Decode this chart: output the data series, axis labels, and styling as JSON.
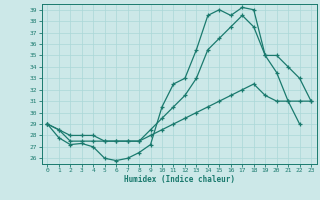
{
  "xlabel": "Humidex (Indice chaleur)",
  "bg_color": "#cce8e8",
  "line_color": "#1a7a6e",
  "grid_color": "#aad8d8",
  "ylim": [
    25.5,
    39.5
  ],
  "xlim": [
    -0.5,
    23.5
  ],
  "yticks": [
    26,
    27,
    28,
    29,
    30,
    31,
    32,
    33,
    34,
    35,
    36,
    37,
    38,
    39
  ],
  "xticks": [
    0,
    1,
    2,
    3,
    4,
    5,
    6,
    7,
    8,
    9,
    10,
    11,
    12,
    13,
    14,
    15,
    16,
    17,
    18,
    19,
    20,
    21,
    22,
    23
  ],
  "line1_x": [
    0,
    1,
    2,
    3,
    4,
    5,
    6,
    7,
    8,
    9,
    10,
    11,
    12,
    13,
    14,
    15,
    16,
    17,
    18,
    19,
    20,
    21,
    22
  ],
  "line1_y": [
    29,
    27.8,
    27.2,
    27.3,
    27.0,
    26.0,
    25.8,
    26.0,
    26.5,
    27.2,
    30.5,
    32.5,
    33.0,
    35.5,
    38.5,
    39.0,
    38.5,
    39.2,
    39.0,
    35.0,
    33.5,
    31.0,
    29.0
  ],
  "line2_x": [
    0,
    1,
    2,
    3,
    4,
    5,
    6,
    7,
    8,
    9,
    10,
    11,
    12,
    13,
    14,
    15,
    16,
    17,
    18,
    19,
    20,
    21,
    22,
    23
  ],
  "line2_y": [
    29,
    28.5,
    27.5,
    27.5,
    27.5,
    27.5,
    27.5,
    27.5,
    27.5,
    28.5,
    29.5,
    30.5,
    31.5,
    33.0,
    35.5,
    36.5,
    37.5,
    38.5,
    37.5,
    35.0,
    35.0,
    34.0,
    33.0,
    31.0
  ],
  "line3_x": [
    0,
    1,
    2,
    3,
    4,
    5,
    6,
    7,
    8,
    9,
    10,
    11,
    12,
    13,
    14,
    15,
    16,
    17,
    18,
    19,
    20,
    21,
    22,
    23
  ],
  "line3_y": [
    29,
    28.5,
    28.0,
    28.0,
    28.0,
    27.5,
    27.5,
    27.5,
    27.5,
    28.0,
    28.5,
    29.0,
    29.5,
    30.0,
    30.5,
    31.0,
    31.5,
    32.0,
    32.5,
    31.5,
    31.0,
    31.0,
    31.0,
    31.0
  ]
}
